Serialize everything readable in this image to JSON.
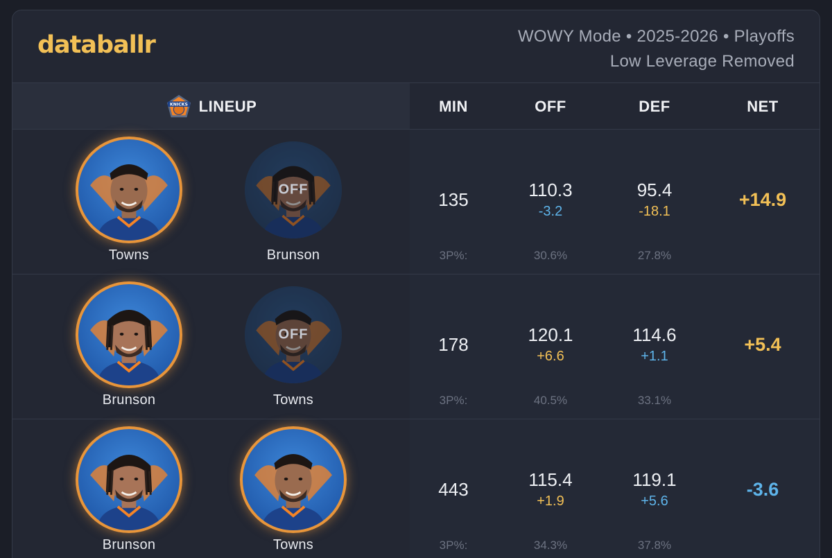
{
  "brand": {
    "name": "databallr",
    "color": "#f2c056"
  },
  "meta": {
    "line1": "WOWY Mode • 2025-2026 • Playoffs",
    "line2": "Low Leverage Removed"
  },
  "columns": {
    "lineup": "LINEUP",
    "min": "MIN",
    "off": "OFF",
    "def": "DEF",
    "net": "NET",
    "team_icon": "knicks-logo-icon"
  },
  "rows": [
    {
      "player1": {
        "name": "Towns",
        "status": "on"
      },
      "player2": {
        "name": "Brunson",
        "status": "off",
        "badge": "OFF"
      },
      "min": "135",
      "off": "110.3",
      "off_delta": "-3.2",
      "off_delta_tone": "neg",
      "def": "95.4",
      "def_delta": "-18.1",
      "def_delta_tone": "pos",
      "net": "+14.9",
      "net_tone": "pos",
      "threes_label": "3P%:",
      "off_3p": "30.6%",
      "def_3p": "27.8%"
    },
    {
      "player1": {
        "name": "Brunson",
        "status": "on"
      },
      "player2": {
        "name": "Towns",
        "status": "off",
        "badge": "OFF"
      },
      "min": "178",
      "off": "120.1",
      "off_delta": "+6.6",
      "off_delta_tone": "pos",
      "def": "114.6",
      "def_delta": "+1.1",
      "def_delta_tone": "neg",
      "net": "+5.4",
      "net_tone": "pos",
      "threes_label": "3P%:",
      "off_3p": "40.5%",
      "def_3p": "33.1%"
    },
    {
      "player1": {
        "name": "Brunson",
        "status": "on"
      },
      "player2": {
        "name": "Towns",
        "status": "on"
      },
      "min": "443",
      "off": "115.4",
      "off_delta": "+1.9",
      "off_delta_tone": "pos",
      "def": "119.1",
      "def_delta": "+5.6",
      "def_delta_tone": "neg",
      "net": "-3.6",
      "net_tone": "neg",
      "threes_label": "3P%:",
      "off_3p": "34.3%",
      "def_3p": "37.8%"
    }
  ],
  "colors": {
    "positive": "#f2c056",
    "negative": "#5eb4ea",
    "on_ring": "#e8953a"
  }
}
